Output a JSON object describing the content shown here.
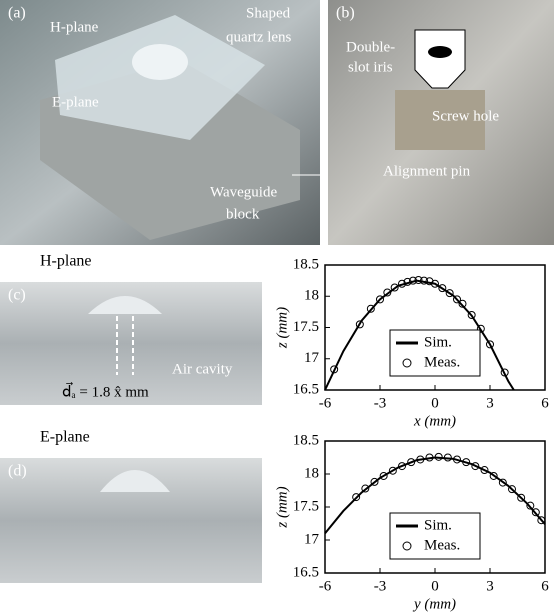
{
  "panels": {
    "a": {
      "label": "(a)",
      "h_plane": "H-plane",
      "lens": [
        "Shaped",
        "quartz lens"
      ],
      "e_plane": "E-plane",
      "block": [
        "Waveguide",
        "block"
      ]
    },
    "b": {
      "label": "(b)",
      "iris": [
        "Double-",
        "slot iris"
      ],
      "screw": "Screw hole",
      "pin": "Alignment pin"
    },
    "c": {
      "label": "(c)",
      "heading": "H-plane",
      "cavity": "Air cavity",
      "offset": "d⃗ₐ = 1.8 x̂ mm"
    },
    "d": {
      "label": "(d)",
      "heading": "E-plane"
    }
  },
  "chart_data": [
    {
      "type": "line",
      "xlabel": "x (mm)",
      "ylabel": "z (mm)",
      "xlim": [
        -6,
        6
      ],
      "xticks": [
        -6,
        -3,
        0,
        3,
        6
      ],
      "ylim": [
        16.5,
        18.5
      ],
      "yticks": [
        16.5,
        17,
        17.5,
        18,
        18.5
      ],
      "legend": "lower center",
      "series": [
        {
          "name": "Sim.",
          "color": "#000000",
          "style": "line",
          "x": [
            -6,
            -5,
            -4,
            -3,
            -2,
            -1,
            0,
            1,
            2,
            3,
            4,
            4.3
          ],
          "values": [
            16.5,
            17.12,
            17.61,
            17.95,
            18.17,
            18.25,
            18.2,
            18.01,
            17.69,
            17.23,
            16.64,
            16.5
          ]
        },
        {
          "name": "Meas.",
          "color": "#000000",
          "style": "marker",
          "x": [
            -5.5,
            -4.1,
            -3.5,
            -3,
            -2.6,
            -2.2,
            -1.8,
            -1.5,
            -1.2,
            -0.9,
            -0.6,
            -0.3,
            0,
            0.4,
            0.8,
            1.2,
            1.5,
            2,
            2.5,
            3,
            3.8
          ],
          "values": [
            16.83,
            17.55,
            17.8,
            17.95,
            18.06,
            18.14,
            18.2,
            18.23,
            18.25,
            18.26,
            18.25,
            18.24,
            18.2,
            18.13,
            18.05,
            17.95,
            17.88,
            17.7,
            17.48,
            17.23,
            16.78
          ]
        }
      ]
    },
    {
      "type": "line",
      "xlabel": "y (mm)",
      "ylabel": "z (mm)",
      "xlim": [
        -6,
        6
      ],
      "xticks": [
        -6,
        -3,
        0,
        3,
        6
      ],
      "ylim": [
        16.5,
        18.5
      ],
      "yticks": [
        16.5,
        17,
        17.5,
        18,
        18.5
      ],
      "legend": "lower center",
      "series": [
        {
          "name": "Sim.",
          "color": "#000000",
          "style": "line",
          "x": [
            -6,
            -5,
            -4,
            -3,
            -2,
            -1,
            0,
            1,
            2,
            3,
            4,
            5,
            6
          ],
          "values": [
            17.1,
            17.44,
            17.72,
            17.94,
            18.1,
            18.21,
            18.25,
            18.23,
            18.15,
            18.02,
            17.82,
            17.56,
            17.24
          ]
        },
        {
          "name": "Meas.",
          "color": "#000000",
          "style": "marker",
          "x": [
            -4.3,
            -3.8,
            -3.3,
            -2.8,
            -2.3,
            -1.8,
            -1.3,
            -0.8,
            -0.3,
            0.2,
            0.7,
            1.2,
            1.7,
            2.2,
            2.7,
            3.2,
            3.7,
            4.2,
            4.7,
            5.2,
            5.5,
            5.8
          ],
          "values": [
            17.65,
            17.78,
            17.88,
            17.97,
            18.05,
            18.12,
            18.18,
            18.22,
            18.25,
            18.26,
            18.25,
            18.22,
            18.18,
            18.12,
            18.06,
            17.97,
            17.87,
            17.77,
            17.64,
            17.52,
            17.42,
            17.3
          ]
        }
      ]
    }
  ]
}
